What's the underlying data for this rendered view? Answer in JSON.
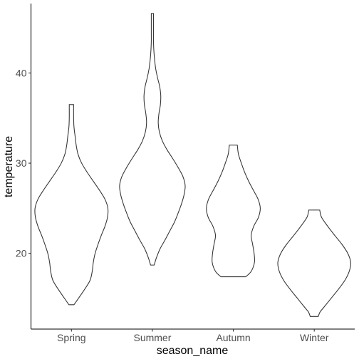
{
  "chart_data": {
    "type": "violin",
    "xlabel": "season_name",
    "ylabel": "temperature",
    "categories": [
      "Spring",
      "Summer",
      "Autumn",
      "Winter"
    ],
    "ylim": [
      11.6,
      47.7
    ],
    "yticks": [
      20,
      30,
      40
    ],
    "grid": false,
    "series": [
      {
        "category": "Spring",
        "min": 14.3,
        "max": 36.5,
        "density_profile": [
          [
            14.3,
            0.07
          ],
          [
            15.0,
            0.19
          ],
          [
            16.0,
            0.36
          ],
          [
            17.0,
            0.51
          ],
          [
            18.0,
            0.57
          ],
          [
            19.0,
            0.6
          ],
          [
            20.0,
            0.65
          ],
          [
            21.0,
            0.73
          ],
          [
            22.0,
            0.82
          ],
          [
            23.0,
            0.92
          ],
          [
            24.0,
            0.99
          ],
          [
            25.0,
            1.0
          ],
          [
            26.0,
            0.92
          ],
          [
            27.0,
            0.77
          ],
          [
            28.0,
            0.6
          ],
          [
            29.0,
            0.43
          ],
          [
            30.0,
            0.28
          ],
          [
            31.0,
            0.18
          ],
          [
            32.0,
            0.13
          ],
          [
            33.0,
            0.1
          ],
          [
            34.0,
            0.07
          ],
          [
            35.0,
            0.06
          ],
          [
            36.5,
            0.06
          ]
        ]
      },
      {
        "category": "Summer",
        "min": 18.7,
        "max": 46.6,
        "density_profile": [
          [
            18.7,
            0.05
          ],
          [
            19.5,
            0.11
          ],
          [
            20.5,
            0.21
          ],
          [
            21.5,
            0.35
          ],
          [
            22.5,
            0.48
          ],
          [
            23.5,
            0.61
          ],
          [
            24.5,
            0.71
          ],
          [
            25.5,
            0.8
          ],
          [
            26.5,
            0.87
          ],
          [
            27.5,
            0.9
          ],
          [
            28.5,
            0.84
          ],
          [
            29.5,
            0.71
          ],
          [
            30.5,
            0.56
          ],
          [
            31.5,
            0.4
          ],
          [
            32.5,
            0.27
          ],
          [
            33.5,
            0.19
          ],
          [
            34.5,
            0.16
          ],
          [
            35.5,
            0.18
          ],
          [
            36.5,
            0.22
          ],
          [
            37.5,
            0.23
          ],
          [
            38.5,
            0.2
          ],
          [
            39.5,
            0.14
          ],
          [
            40.5,
            0.09
          ],
          [
            41.5,
            0.06
          ],
          [
            42.5,
            0.04
          ],
          [
            43.5,
            0.03
          ],
          [
            44.5,
            0.03
          ],
          [
            46.6,
            0.03
          ]
        ]
      },
      {
        "category": "Autumn",
        "min": 17.4,
        "max": 32.0,
        "density_profile": [
          [
            17.4,
            0.34
          ],
          [
            18.0,
            0.49
          ],
          [
            19.0,
            0.58
          ],
          [
            20.0,
            0.57
          ],
          [
            21.0,
            0.53
          ],
          [
            22.0,
            0.49
          ],
          [
            23.0,
            0.56
          ],
          [
            24.0,
            0.69
          ],
          [
            25.0,
            0.74
          ],
          [
            26.0,
            0.68
          ],
          [
            27.0,
            0.55
          ],
          [
            28.0,
            0.42
          ],
          [
            29.0,
            0.31
          ],
          [
            30.0,
            0.22
          ],
          [
            31.0,
            0.14
          ],
          [
            32.0,
            0.11
          ]
        ]
      },
      {
        "category": "Winter",
        "min": 13.0,
        "max": 24.8,
        "density_profile": [
          [
            13.0,
            0.11
          ],
          [
            13.5,
            0.16
          ],
          [
            14.0,
            0.26
          ],
          [
            15.0,
            0.46
          ],
          [
            16.0,
            0.66
          ],
          [
            17.0,
            0.84
          ],
          [
            18.0,
            0.96
          ],
          [
            19.0,
            1.0
          ],
          [
            20.0,
            0.92
          ],
          [
            21.0,
            0.76
          ],
          [
            22.0,
            0.56
          ],
          [
            23.0,
            0.37
          ],
          [
            24.0,
            0.2
          ],
          [
            24.8,
            0.15
          ]
        ]
      }
    ]
  }
}
